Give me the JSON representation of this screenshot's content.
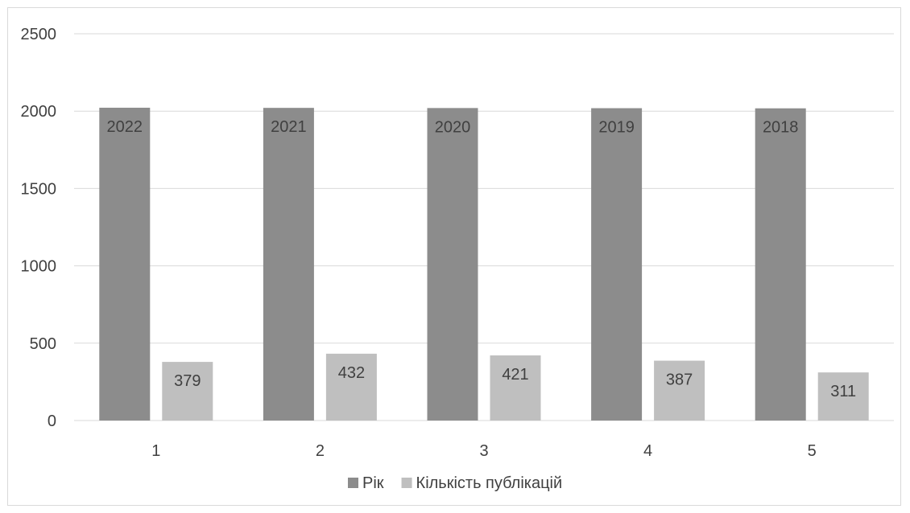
{
  "chart_data": {
    "type": "bar",
    "title": "",
    "xlabel": "",
    "ylabel": "",
    "categories": [
      "1",
      "2",
      "3",
      "4",
      "5"
    ],
    "series": [
      {
        "name": "Рік",
        "values": [
          2022,
          2021,
          2020,
          2019,
          2018
        ],
        "color": "#8c8c8c"
      },
      {
        "name": "Кількість публікацій",
        "values": [
          379,
          432,
          421,
          387,
          311
        ],
        "color": "#bfbfbf"
      }
    ],
    "ylim": [
      0,
      2500
    ],
    "yticks": [
      "0",
      "500",
      "1000",
      "1500",
      "2000",
      "2500"
    ],
    "grid": true,
    "legend_position": "bottom",
    "data_labels": true
  }
}
